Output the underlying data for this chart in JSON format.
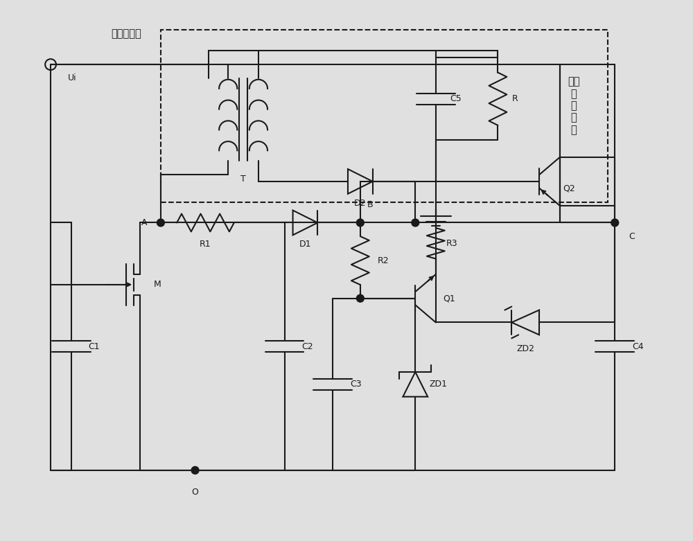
{
  "bg_color": "#e0e0e0",
  "line_color": "#1a1a1a",
  "figsize": [
    10.0,
    7.81
  ],
  "dpi": 100,
  "title_text": "电压输入端",
  "ui_label": "Ui",
  "label_T": "T",
  "label_D2": "D2",
  "label_D1": "D1",
  "label_R1": "R1",
  "label_R2": "R2",
  "label_R3": "R3",
  "label_R": "R",
  "label_C1": "C1",
  "label_C2": "C2",
  "label_C3": "C3",
  "label_C4": "C4",
  "label_C5": "C5",
  "label_M": "M",
  "label_Q1": "Q1",
  "label_Q2": "Q2",
  "label_ZD1": "ZD1",
  "label_ZD2": "ZD2",
  "label_A": "A",
  "label_B": "B",
  "label_O": "O",
  "label_C": "C",
  "dashed_label": "变压\n输\n出\n电\n路"
}
